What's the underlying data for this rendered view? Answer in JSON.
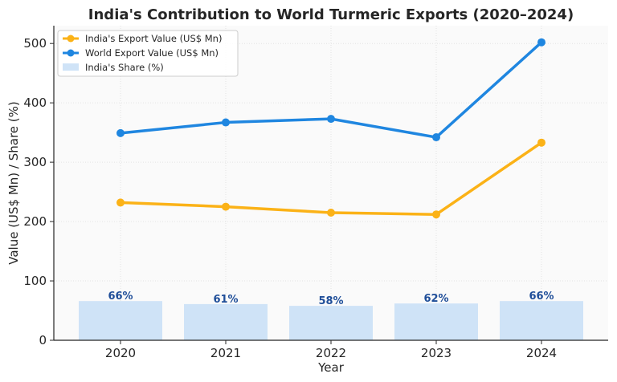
{
  "chart_data": {
    "type": "line",
    "title": "India's Contribution to World Turmeric Exports (2020–2024)",
    "xlabel": "Year",
    "ylabel": "Value (US$ Mn) / Share (%)",
    "categories": [
      "2020",
      "2021",
      "2022",
      "2023",
      "2024"
    ],
    "ylim": [
      0,
      530
    ],
    "yticks": [
      0,
      100,
      200,
      300,
      400,
      500
    ],
    "grid": true,
    "legend_position": "top-left",
    "series": [
      {
        "name": "India's Export Value (US$ Mn)",
        "type": "line",
        "color": "#fbb217",
        "values": [
          232,
          225,
          215,
          212,
          333
        ]
      },
      {
        "name": "World Export Value (US$ Mn)",
        "type": "line",
        "color": "#1f86e0",
        "values": [
          349,
          367,
          373,
          342,
          502
        ]
      },
      {
        "name": "India's Share (%)",
        "type": "bar",
        "color": "#cfe3f7",
        "values": [
          66,
          61,
          58,
          62,
          66
        ],
        "labels": [
          "66%",
          "61%",
          "58%",
          "62%",
          "66%"
        ]
      }
    ]
  }
}
